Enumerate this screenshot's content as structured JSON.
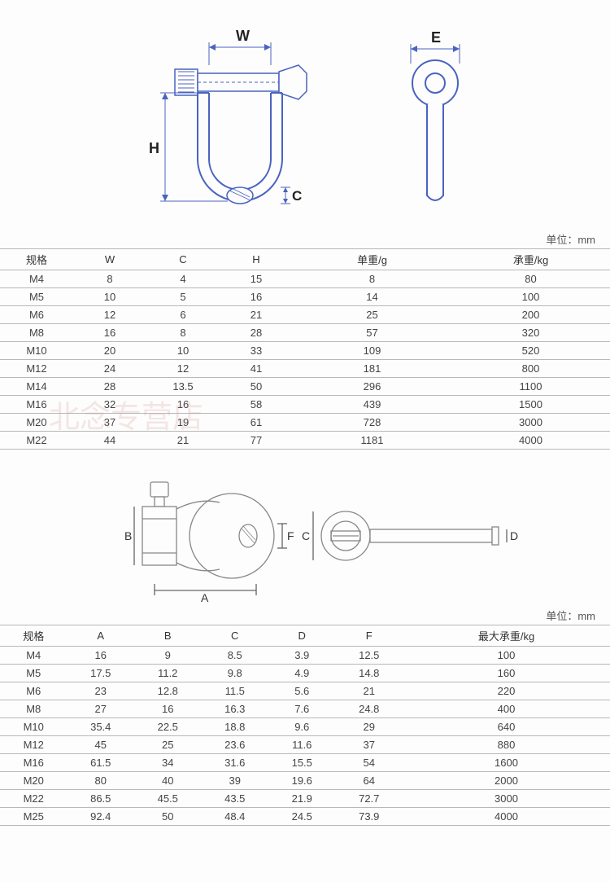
{
  "unit_label": "单位：mm",
  "diagram1": {
    "labels": {
      "W": "W",
      "H": "H",
      "C": "C",
      "E": "E"
    },
    "stroke": "#4a63c0",
    "fill_hatch": "#6b7fb8"
  },
  "diagram2": {
    "labels": {
      "A": "A",
      "B": "B",
      "C": "C",
      "D": "D",
      "F": "F"
    },
    "stroke": "#888888"
  },
  "table1": {
    "columns": [
      "规格",
      "W",
      "C",
      "H",
      "单重/g",
      "承重/kg"
    ],
    "col_widths": [
      "12%",
      "12%",
      "12%",
      "12%",
      "26%",
      "26%"
    ],
    "rows": [
      [
        "M4",
        "8",
        "4",
        "15",
        "8",
        "80"
      ],
      [
        "M5",
        "10",
        "5",
        "16",
        "14",
        "100"
      ],
      [
        "M6",
        "12",
        "6",
        "21",
        "25",
        "200"
      ],
      [
        "M8",
        "16",
        "8",
        "28",
        "57",
        "320"
      ],
      [
        "M10",
        "20",
        "10",
        "33",
        "109",
        "520"
      ],
      [
        "M12",
        "24",
        "12",
        "41",
        "181",
        "800"
      ],
      [
        "M14",
        "28",
        "13.5",
        "50",
        "296",
        "1100"
      ],
      [
        "M16",
        "32",
        "16",
        "58",
        "439",
        "1500"
      ],
      [
        "M20",
        "37",
        "19",
        "61",
        "728",
        "3000"
      ],
      [
        "M22",
        "44",
        "21",
        "77",
        "1181",
        "4000"
      ]
    ]
  },
  "table2": {
    "columns": [
      "规格",
      "A",
      "B",
      "C",
      "D",
      "F",
      "最大承重/kg"
    ],
    "col_widths": [
      "11%",
      "11%",
      "11%",
      "11%",
      "11%",
      "11%",
      "34%"
    ],
    "rows": [
      [
        "M4",
        "16",
        "9",
        "8.5",
        "3.9",
        "12.5",
        "100"
      ],
      [
        "M5",
        "17.5",
        "11.2",
        "9.8",
        "4.9",
        "14.8",
        "160"
      ],
      [
        "M6",
        "23",
        "12.8",
        "11.5",
        "5.6",
        "21",
        "220"
      ],
      [
        "M8",
        "27",
        "16",
        "16.3",
        "7.6",
        "24.8",
        "400"
      ],
      [
        "M10",
        "35.4",
        "22.5",
        "18.8",
        "9.6",
        "29",
        "640"
      ],
      [
        "M12",
        "45",
        "25",
        "23.6",
        "11.6",
        "37",
        "880"
      ],
      [
        "M16",
        "61.5",
        "34",
        "31.6",
        "15.5",
        "54",
        "1600"
      ],
      [
        "M20",
        "80",
        "40",
        "39",
        "19.6",
        "64",
        "2000"
      ],
      [
        "M22",
        "86.5",
        "45.5",
        "43.5",
        "21.9",
        "72.7",
        "3000"
      ],
      [
        "M25",
        "92.4",
        "50",
        "48.4",
        "24.5",
        "73.9",
        "4000"
      ]
    ]
  },
  "watermark": "北念专营店"
}
